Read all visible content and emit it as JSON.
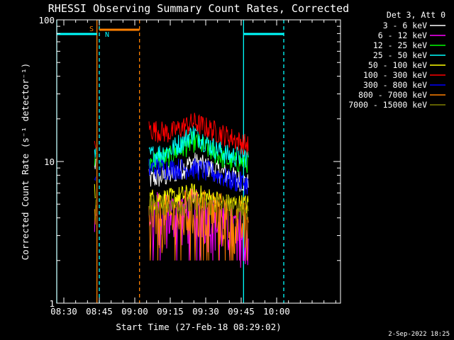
{
  "chart_data": {
    "type": "line",
    "title": "RHESSI Observing Summary Count Rates, Corrected",
    "xlabel": "Start Time (27-Feb-18 08:29:02)",
    "ylabel": "Corrected Count Rate (s⁻¹ detector⁻¹)",
    "y_scale": "log",
    "ylim": [
      1,
      100
    ],
    "xlim": [
      "08:27",
      "10:27"
    ],
    "x_ticks": [
      "08:30",
      "08:45",
      "09:00",
      "09:15",
      "09:30",
      "09:45",
      "10:00"
    ],
    "y_ticks": [
      "1",
      "10",
      "100"
    ],
    "legend_title": "Det 3, Att 0",
    "legend_position": "right, outside plot",
    "footer": "2-Sep-2022 18:25",
    "series": [
      {
        "name": "3 - 6 keV",
        "color": "#ffffff",
        "times": [
          "08:43",
          "08:43.5",
          "09:06",
          "09:15",
          "09:25",
          "09:32",
          "09:40",
          "09:48"
        ],
        "values": [
          9,
          10,
          7.5,
          8,
          10,
          9,
          8,
          7
        ]
      },
      {
        "name": "6 - 12 keV",
        "color": "#ff00ff",
        "times": [
          "08:43",
          "08:43.5",
          "09:06",
          "09:15",
          "09:25",
          "09:32",
          "09:40",
          "09:48"
        ],
        "values": [
          5,
          5.5,
          4.5,
          4.2,
          4.5,
          4,
          3.5,
          3
        ]
      },
      {
        "name": "12 - 25 keV",
        "color": "#00ff00",
        "times": [
          "08:43",
          "08:43.5",
          "09:06",
          "09:15",
          "09:25",
          "09:32",
          "09:40",
          "09:48"
        ],
        "values": [
          10,
          10,
          10,
          11,
          14,
          12,
          10,
          10
        ]
      },
      {
        "name": "25 - 50 keV",
        "color": "#00ffff",
        "times": [
          "08:43",
          "08:43.5",
          "09:06",
          "09:15",
          "09:25",
          "09:32",
          "09:40",
          "09:48"
        ],
        "values": [
          11,
          11,
          11,
          12,
          16,
          13,
          11,
          11
        ]
      },
      {
        "name": "50 - 100 keV",
        "color": "#ffff00",
        "times": [
          "08:43",
          "08:43.5",
          "09:06",
          "09:15",
          "09:25",
          "09:32",
          "09:40",
          "09:48"
        ],
        "values": [
          6,
          6,
          5.5,
          5.5,
          6,
          5.5,
          5,
          5
        ]
      },
      {
        "name": "100 - 300 keV",
        "color": "#ff0000",
        "times": [
          "08:43",
          "08:43.5",
          "09:06",
          "09:15",
          "09:25",
          "09:32",
          "09:40",
          "09:48"
        ],
        "values": [
          13,
          14,
          17,
          16,
          19,
          17,
          15,
          13
        ]
      },
      {
        "name": "300 - 800 keV",
        "color": "#0000ff",
        "times": [
          "08:43",
          "08:43.5",
          "09:06",
          "09:15",
          "09:25",
          "09:32",
          "09:40",
          "09:48"
        ],
        "values": [
          7,
          7,
          9,
          9,
          9,
          8.5,
          7.5,
          7
        ]
      },
      {
        "name": "800 - 7000 keV",
        "color": "#ff8000",
        "times": [
          "08:43",
          "08:43.5",
          "09:06",
          "09:15",
          "09:25",
          "09:32",
          "09:40",
          "09:48"
        ],
        "values": [
          3.5,
          3.8,
          4,
          4,
          4.5,
          4.5,
          4,
          3.5
        ]
      },
      {
        "name": "7000 - 15000 keV",
        "color": "#808000",
        "times": [
          "08:43",
          "08:43.5",
          "09:06",
          "09:15",
          "09:25",
          "09:32",
          "09:40",
          "09:48"
        ],
        "values": [
          4.5,
          5,
          5,
          5,
          5,
          5,
          5,
          4.5
        ]
      }
    ],
    "annotations": {
      "saa_label": "S",
      "night_label": "N",
      "saa_color": "#ff8000",
      "night_color": "#00ffff",
      "night_bars": [
        [
          "08:27",
          "08:44"
        ],
        [
          "09:46",
          "10:03"
        ]
      ],
      "saa_bar": [
        "08:45",
        "09:02"
      ],
      "vlines": [
        {
          "t": "08:27",
          "color": "#00ffff",
          "style": "solid"
        },
        {
          "t": "08:44",
          "color": "#ff8000",
          "style": "solid"
        },
        {
          "t": "08:45",
          "color": "#00ffff",
          "style": "dash"
        },
        {
          "t": "09:02",
          "color": "#ff8000",
          "style": "dash"
        },
        {
          "t": "09:46",
          "color": "#00ffff",
          "style": "solid"
        },
        {
          "t": "10:03",
          "color": "#00ffff",
          "style": "dash"
        }
      ]
    }
  }
}
